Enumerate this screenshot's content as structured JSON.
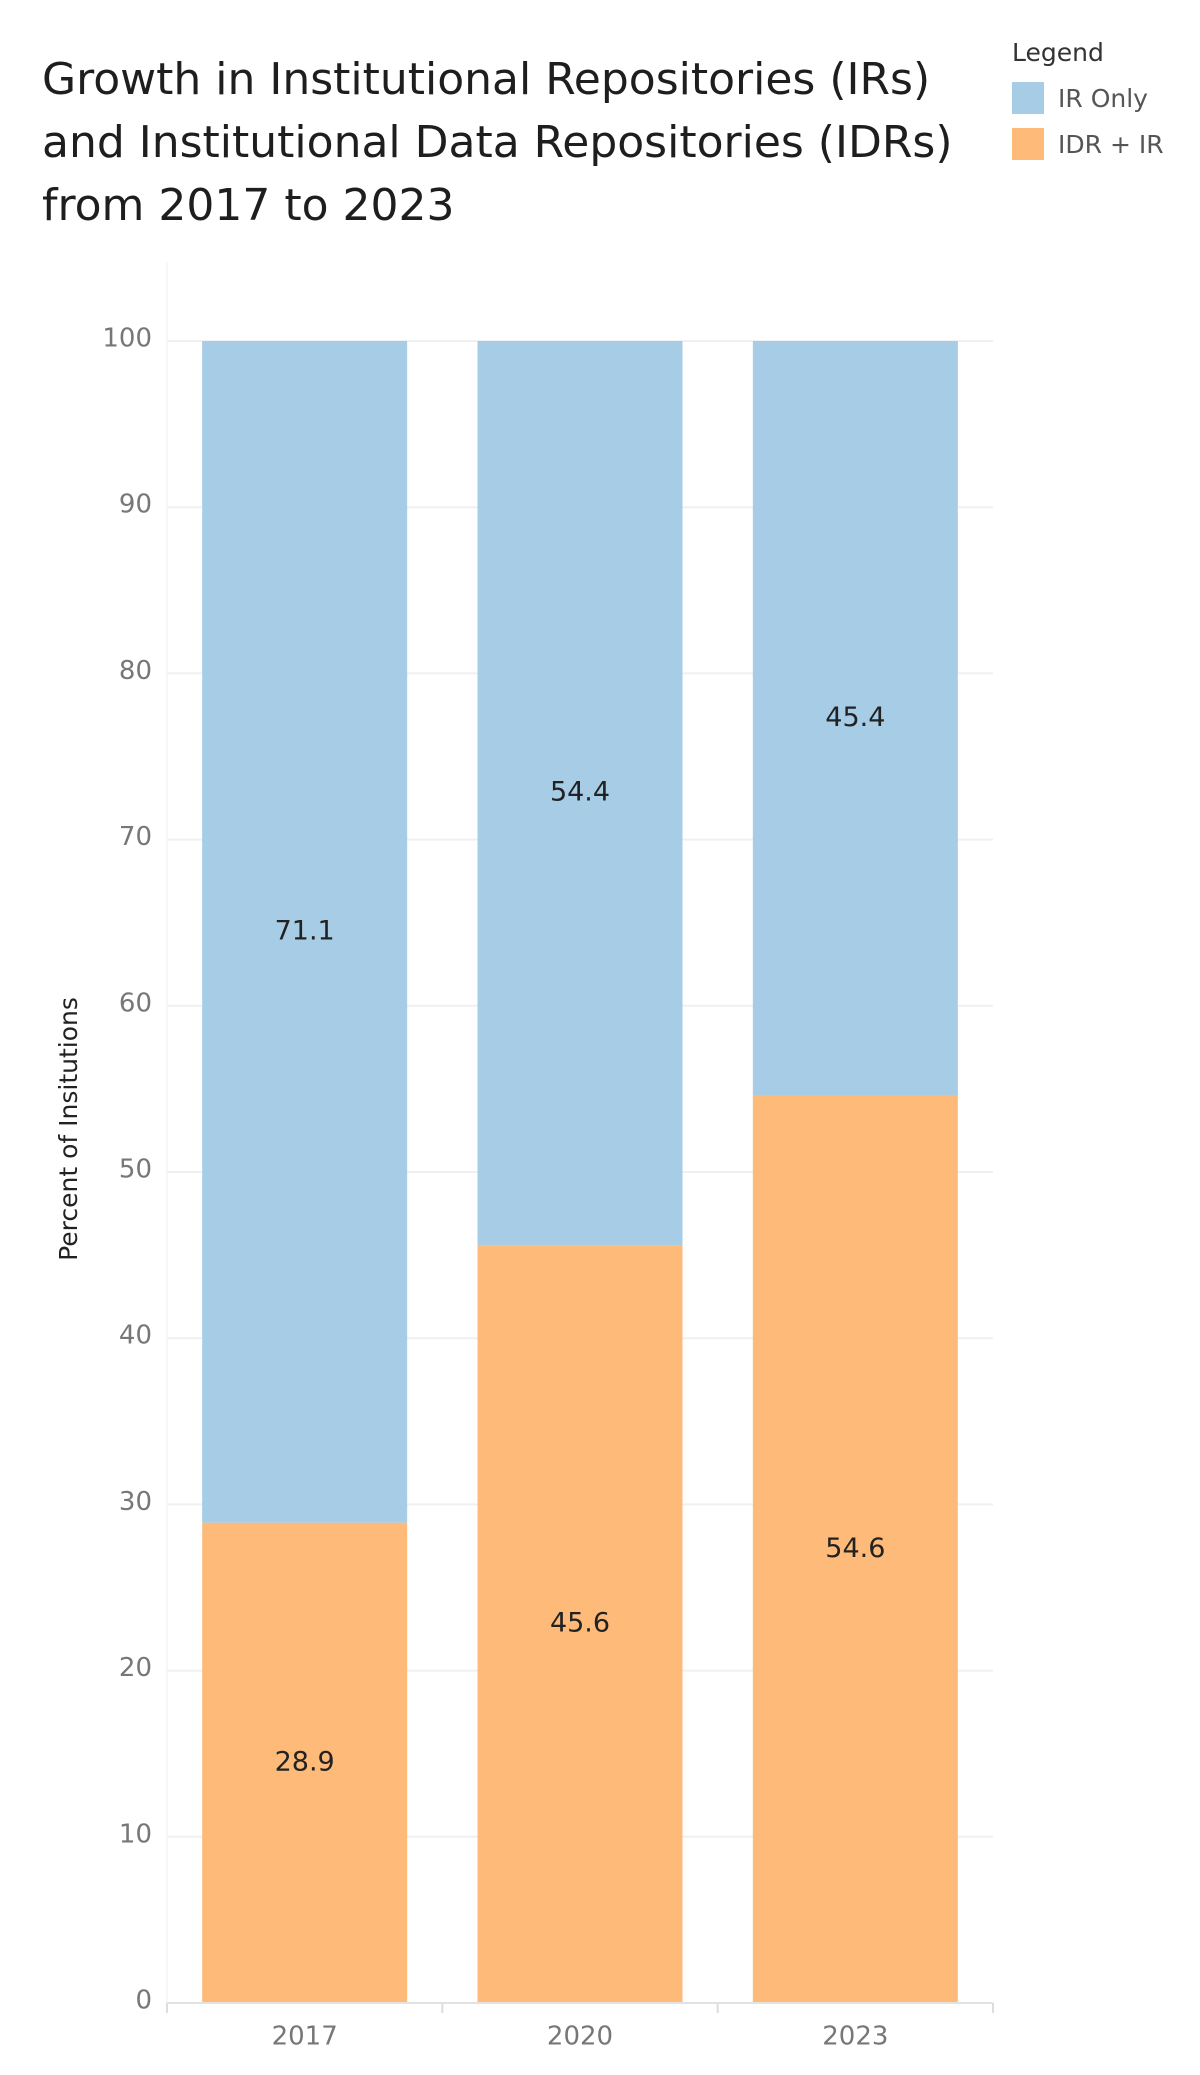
{
  "chart_data": {
    "type": "bar",
    "stacked": true,
    "title_lines": [
      "Growth in Institutional Repositories (IRs)",
      "and Institutional Data Repositories (IDRs)",
      "from 2017 to 2023"
    ],
    "ylabel": "Percent of Insitutions",
    "xlabel": "",
    "categories": [
      "2017",
      "2020",
      "2023"
    ],
    "series": [
      {
        "name": "IDR + IR",
        "values": [
          28.9,
          45.6,
          54.6
        ],
        "color": "#FDBA79"
      },
      {
        "name": "IR Only",
        "values": [
          71.1,
          54.4,
          45.4
        ],
        "color": "#A6CCE6"
      }
    ],
    "ylim": [
      0,
      100
    ],
    "yticks": [
      "0",
      "10",
      "20",
      "30",
      "40",
      "50",
      "60",
      "70",
      "80",
      "90",
      "100"
    ],
    "grid": true,
    "legend": {
      "title": "Legend",
      "position": "top-right",
      "items": [
        {
          "label": "IR Only",
          "color": "#A6CCE6"
        },
        {
          "label": "IDR + IR",
          "color": "#FDBA79"
        }
      ]
    }
  }
}
